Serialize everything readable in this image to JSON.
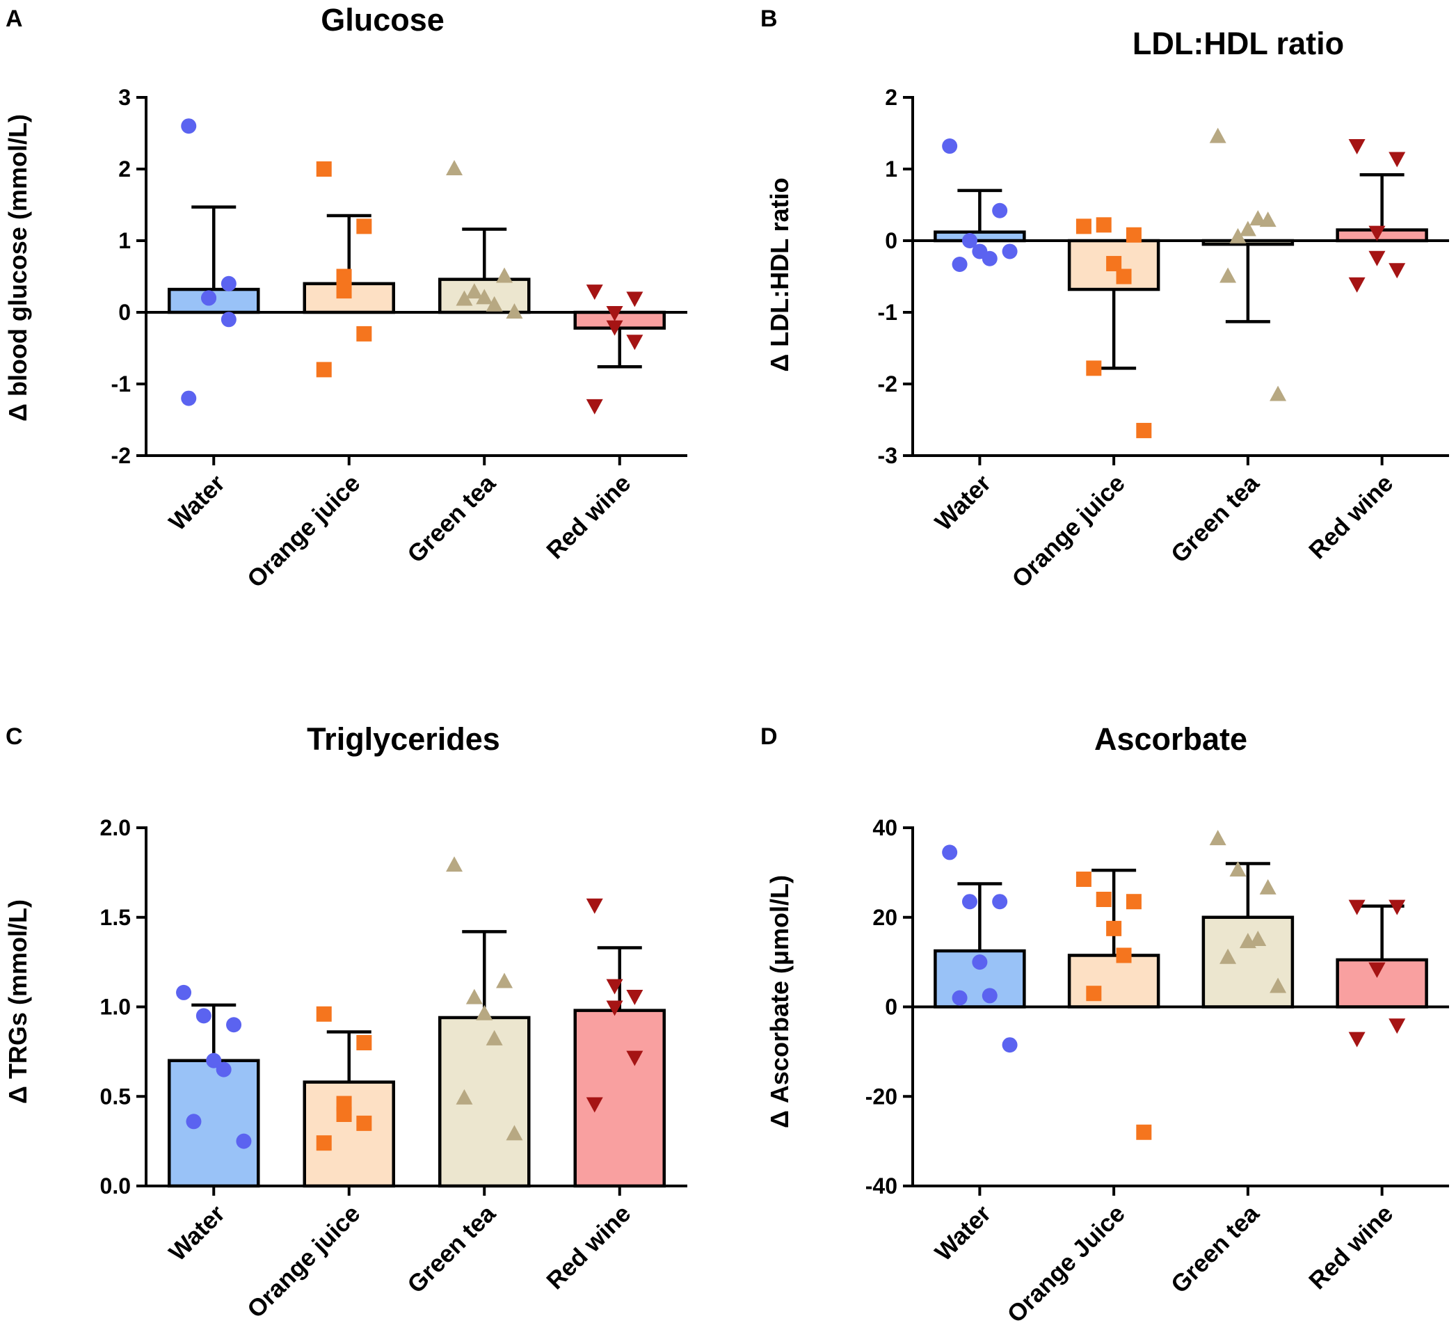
{
  "groups": [
    "Water",
    "Orange juice",
    "Green tea",
    "Red wine"
  ],
  "colors": {
    "bar_fills": [
      "#99c2f7",
      "#fde0c4",
      "#ece6cf",
      "#f9a0a0"
    ],
    "point_fills": [
      "#5b63f0",
      "#f5751e",
      "#b7a882",
      "#a51414"
    ],
    "point_shapes": [
      "circle",
      "square",
      "triangle-up",
      "triangle-down"
    ]
  },
  "chart_data": [
    {
      "panel": "A",
      "type": "bar",
      "title": "Glucose",
      "ylabel": "Δ blood glucose (mmol/L)",
      "categories": [
        "Water",
        "Orange juice",
        "Green tea",
        "Red wine"
      ],
      "ylim": [
        -2,
        3
      ],
      "yticks": [
        -2,
        -1,
        0,
        1,
        2,
        3
      ],
      "ytick_labels": [
        "-2",
        "-1",
        "0",
        "1",
        "2",
        "3"
      ],
      "means": [
        0.32,
        0.4,
        0.46,
        -0.22
      ],
      "sd": [
        1.15,
        0.95,
        0.7,
        0.54
      ],
      "error_direction": [
        "up",
        "up",
        "up",
        "down"
      ],
      "points": [
        [
          2.6,
          0.4,
          0.2,
          0.2,
          -0.1,
          -1.2
        ],
        [
          2.0,
          1.2,
          0.5,
          0.3,
          -0.3,
          -0.8
        ],
        [
          2.0,
          0.5,
          0.28,
          0.2,
          0.1,
          0.18,
          0.0
        ],
        [
          0.3,
          0.2,
          0.0,
          -0.2,
          -0.4,
          -1.3
        ]
      ]
    },
    {
      "panel": "B",
      "type": "bar",
      "title": "LDL:HDL ratio",
      "ylabel": "Δ LDL:HDL ratio",
      "categories": [
        "Water",
        "Orange juice",
        "Green tea",
        "Red wine"
      ],
      "ylim": [
        -3,
        2
      ],
      "yticks": [
        -3,
        -2,
        -1,
        0,
        1,
        2
      ],
      "ytick_labels": [
        "-3",
        "-2",
        "-1",
        "0",
        "1",
        "2"
      ],
      "means": [
        0.12,
        -0.68,
        -0.05,
        0.15
      ],
      "sd": [
        0.58,
        1.1,
        1.08,
        0.77
      ],
      "error_direction": [
        "up",
        "down",
        "down",
        "up"
      ],
      "points": [
        [
          1.32,
          0.42,
          0.0,
          -0.15,
          -0.25,
          -0.33,
          -0.15
        ],
        [
          0.2,
          0.08,
          0.22,
          -0.32,
          -0.5,
          -1.78,
          -2.65
        ],
        [
          1.45,
          0.28,
          0.05,
          0.15,
          0.3,
          -0.5,
          -2.15
        ],
        [
          1.33,
          1.15,
          0.12,
          -0.23,
          -0.4,
          -0.6
        ]
      ]
    },
    {
      "panel": "C",
      "type": "bar",
      "title": "Triglycerides",
      "ylabel": "Δ TRGs (mmol/L)",
      "categories": [
        "Water",
        "Orange juice",
        "Green tea",
        "Red wine"
      ],
      "ylim": [
        0,
        2
      ],
      "yticks": [
        0,
        0.5,
        1,
        1.5,
        2
      ],
      "ytick_labels": [
        "0.0",
        "0.5",
        "1.0",
        "1.5",
        "2.0"
      ],
      "means": [
        0.7,
        0.58,
        0.94,
        0.98
      ],
      "sd": [
        0.31,
        0.28,
        0.48,
        0.35
      ],
      "error_direction": [
        "up",
        "up",
        "up",
        "up"
      ],
      "points": [
        [
          1.08,
          0.9,
          0.95,
          0.7,
          0.65,
          0.36,
          0.25
        ],
        [
          0.96,
          0.8,
          0.46,
          0.4,
          0.35,
          0.24
        ],
        [
          1.79,
          1.14,
          1.05,
          0.96,
          0.82,
          0.49,
          0.29
        ],
        [
          1.57,
          1.06,
          1.12,
          1.0,
          0.72,
          0.46
        ]
      ]
    },
    {
      "panel": "D",
      "type": "bar",
      "title": "Ascorbate",
      "ylabel": "Δ Ascorbate (μmol/L)",
      "categories": [
        "Water",
        "Orange Juice",
        "Green tea",
        "Red wine"
      ],
      "ylim": [
        -40,
        40
      ],
      "yticks": [
        -40,
        -20,
        0,
        20,
        40
      ],
      "ytick_labels": [
        "-40",
        "-20",
        "0",
        "20",
        "40"
      ],
      "means": [
        12.5,
        11.5,
        20,
        10.5
      ],
      "sd": [
        15,
        19,
        12,
        12
      ],
      "error_direction": [
        "up",
        "up",
        "up",
        "up"
      ],
      "points": [
        [
          34.5,
          23.5,
          23.5,
          10,
          2.5,
          2,
          -8.5
        ],
        [
          28.5,
          23.5,
          24,
          17.5,
          11.5,
          3,
          -28
        ],
        [
          37.5,
          26.5,
          30.5,
          14.5,
          15,
          11,
          4.5
        ],
        [
          22.5,
          22.5,
          8.5,
          8.5,
          -4,
          -7
        ]
      ]
    }
  ]
}
